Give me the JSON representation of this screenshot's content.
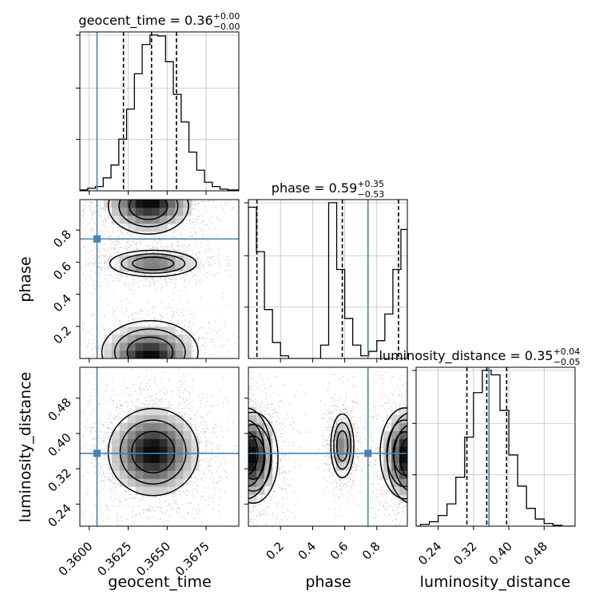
{
  "chart_data": {
    "type": "corner",
    "parameters": [
      "geocent_time",
      "phase",
      "luminosity_distance"
    ],
    "truths": {
      "geocent_time": 0.3605,
      "phase": 0.745,
      "luminosity_distance": 0.355
    },
    "ranges": {
      "geocent_time": [
        0.3594,
        0.3696
      ],
      "phase": [
        0.0,
        0.99
      ],
      "luminosity_distance": [
        0.19,
        0.55
      ]
    },
    "ticks": {
      "geocent_time": {
        "values": [
          0.36,
          0.3625,
          0.365,
          0.3675
        ],
        "labels": [
          "0.3600",
          "0.3625",
          "0.3650",
          "0.3675"
        ]
      },
      "phase": {
        "values": [
          0.2,
          0.4,
          0.6,
          0.8
        ],
        "labels": [
          "0.2",
          "0.4",
          "0.6",
          "0.8"
        ]
      },
      "luminosity_distance": {
        "values": [
          0.24,
          0.32,
          0.4,
          0.48
        ],
        "labels": [
          "0.24",
          "0.32",
          "0.40",
          "0.48"
        ]
      }
    },
    "axis_labels": {
      "x": [
        "geocent_time",
        "phase",
        "luminosity_distance"
      ],
      "y": [
        "phase",
        "luminosity_distance"
      ]
    },
    "titles": [
      {
        "param": "geocent_time",
        "main": "geocent_time = 0.36",
        "sup": "+0.00",
        "sub": "−0.00"
      },
      {
        "param": "phase",
        "main": "phase = 0.59",
        "sup": "+0.35",
        "sub": "−0.53"
      },
      {
        "param": "luminosity_distance",
        "main": "luminosity_distance = 0.35",
        "sup": "+0.04",
        "sub": "−0.05"
      }
    ],
    "quantiles": {
      "geocent_time": [
        0.3622,
        0.364,
        0.3656
      ],
      "phase": [
        0.053,
        0.585,
        0.935
      ],
      "luminosity_distance": [
        0.305,
        0.35,
        0.395
      ]
    },
    "histograms": {
      "geocent_time": {
        "edges": [
          0.3594,
          0.3599,
          0.3604,
          0.3609,
          0.3614,
          0.3619,
          0.3624,
          0.3629,
          0.3634,
          0.3639,
          0.3644,
          0.3649,
          0.3654,
          0.3659,
          0.3664,
          0.3669,
          0.3674,
          0.3679,
          0.3684,
          0.3689,
          0.3696
        ],
        "counts": [
          1,
          3,
          5,
          15,
          30,
          60,
          95,
          136,
          170,
          181,
          180,
          150,
          112,
          80,
          45,
          24,
          10,
          5,
          2,
          1
        ]
      },
      "phase": {
        "edges": [
          0.0,
          0.05,
          0.1,
          0.15,
          0.2,
          0.25,
          0.3,
          0.35,
          0.4,
          0.45,
          0.5,
          0.55,
          0.6,
          0.65,
          0.7,
          0.75,
          0.8,
          0.85,
          0.9,
          0.95,
          0.99
        ],
        "counts": [
          170,
          120,
          55,
          18,
          3,
          0,
          0,
          0,
          0,
          15,
          175,
          100,
          45,
          15,
          3,
          8,
          20,
          50,
          100,
          145
        ]
      },
      "luminosity_distance": {
        "edges": [
          0.19,
          0.2,
          0.22,
          0.24,
          0.26,
          0.28,
          0.3,
          0.32,
          0.34,
          0.36,
          0.38,
          0.4,
          0.42,
          0.44,
          0.46,
          0.48,
          0.5,
          0.52,
          0.55
        ],
        "counts": [
          0,
          2,
          5,
          12,
          25,
          55,
          100,
          150,
          175,
          170,
          130,
          80,
          45,
          20,
          8,
          3,
          1,
          0
        ]
      }
    },
    "density_blobs": {
      "geocent_time_vs_phase": [
        {
          "cx": 0.3638,
          "cy": 0.95,
          "sx": 0.00125,
          "sy": 0.085,
          "n": 700,
          "weight": 0.9
        },
        {
          "cx": 0.3641,
          "cy": 0.592,
          "sx": 0.00135,
          "sy": 0.04,
          "n": 1000,
          "weight": 1.0
        },
        {
          "cx": 0.3639,
          "cy": 0.04,
          "sx": 0.0015,
          "sy": 0.095,
          "n": 1100,
          "weight": 1.0
        }
      ],
      "geocent_time_vs_luminosity_distance": [
        {
          "cx": 0.3641,
          "cy": 0.358,
          "sx": 0.0014,
          "sy": 0.048,
          "n": 2200,
          "weight": 1.0
        }
      ],
      "phase_vs_luminosity_distance": [
        {
          "cx": 0.03,
          "cy": 0.345,
          "sx": 0.075,
          "sy": 0.05,
          "n": 800,
          "weight": 1.0
        },
        {
          "cx": 0.585,
          "cy": 0.372,
          "sx": 0.035,
          "sy": 0.035,
          "n": 800,
          "weight": 1.0
        },
        {
          "cx": 0.975,
          "cy": 0.355,
          "sx": 0.075,
          "sy": 0.05,
          "n": 800,
          "weight": 1.0
        }
      ]
    },
    "contour_levels": [
      0.9,
      0.62,
      0.32,
      0.12
    ],
    "colors": {
      "truth": "#4682b4",
      "grid": "#c0c0c0",
      "contour": "#000000",
      "quantile": "#000000"
    },
    "grid": true
  }
}
